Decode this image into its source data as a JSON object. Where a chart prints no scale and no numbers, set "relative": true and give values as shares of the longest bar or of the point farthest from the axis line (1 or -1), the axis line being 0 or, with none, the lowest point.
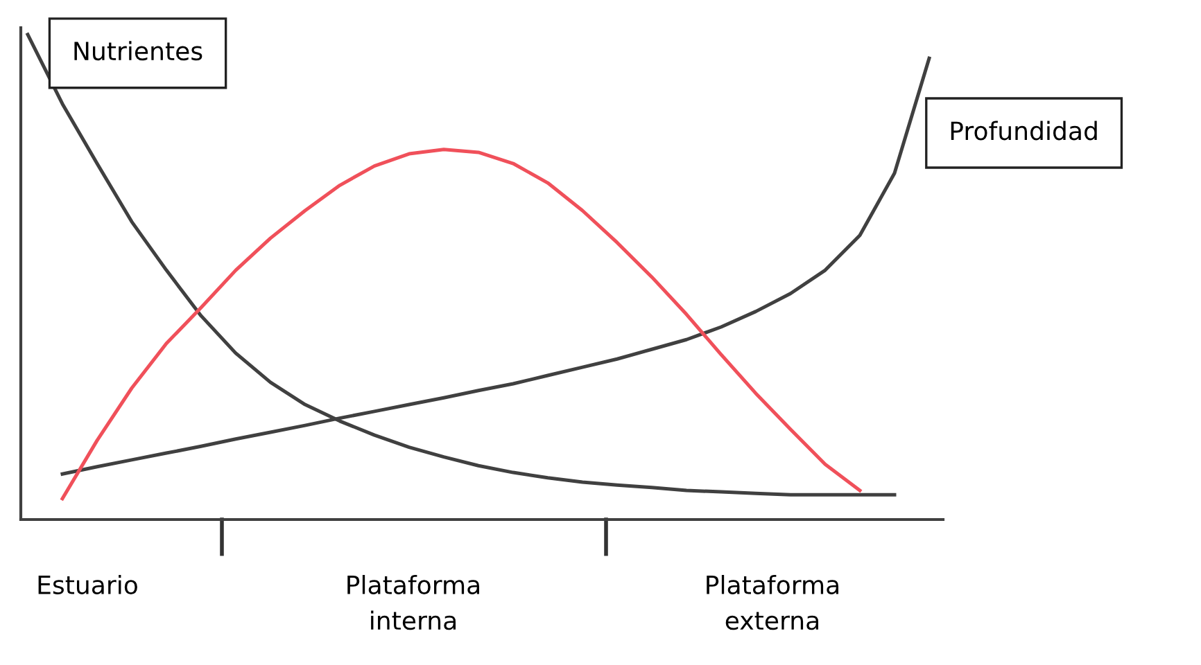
{
  "chart_data": {
    "type": "line",
    "relative": true,
    "legend": false,
    "grid": false,
    "marker": "none",
    "line_style": "solid",
    "categories": [
      null,
      null,
      null,
      null,
      null,
      null,
      null,
      null,
      null,
      null,
      null,
      null,
      null,
      null,
      null,
      null,
      null,
      null,
      null,
      null,
      null,
      null,
      null,
      null,
      null,
      null,
      null
    ],
    "annotations": [
      "Estuario",
      "Plataforma\ninterna",
      "Plataforma\nexterna"
    ],
    "series": [
      {
        "name": "Nutrientes",
        "color": "#404040",
        "values": [
          1.0,
          0.857,
          0.734,
          0.614,
          0.514,
          0.42,
          0.343,
          0.283,
          0.237,
          0.203,
          0.174,
          0.149,
          0.129,
          0.111,
          0.097,
          0.086,
          0.077,
          0.071,
          0.066,
          0.06,
          0.057,
          0.054,
          0.051,
          0.051,
          0.051,
          0.051,
          null
        ]
      },
      {
        "name": "Profundidad",
        "color": "#404040",
        "values": [
          null,
          0.094,
          0.109,
          0.123,
          0.137,
          0.151,
          0.166,
          0.18,
          0.194,
          0.209,
          0.223,
          0.237,
          0.251,
          0.266,
          0.28,
          0.297,
          0.314,
          0.331,
          0.351,
          0.371,
          0.397,
          0.429,
          0.466,
          0.514,
          0.586,
          0.714,
          0.951
        ]
      },
      {
        "color": "#f0505a",
        "values": [
          null,
          0.043,
          0.163,
          0.271,
          0.363,
          0.437,
          0.514,
          0.58,
          0.637,
          0.689,
          0.729,
          0.754,
          0.763,
          0.757,
          0.734,
          0.694,
          0.637,
          0.571,
          0.5,
          0.423,
          0.34,
          0.26,
          0.186,
          0.114,
          0.06,
          null,
          null
        ]
      }
    ]
  }
}
